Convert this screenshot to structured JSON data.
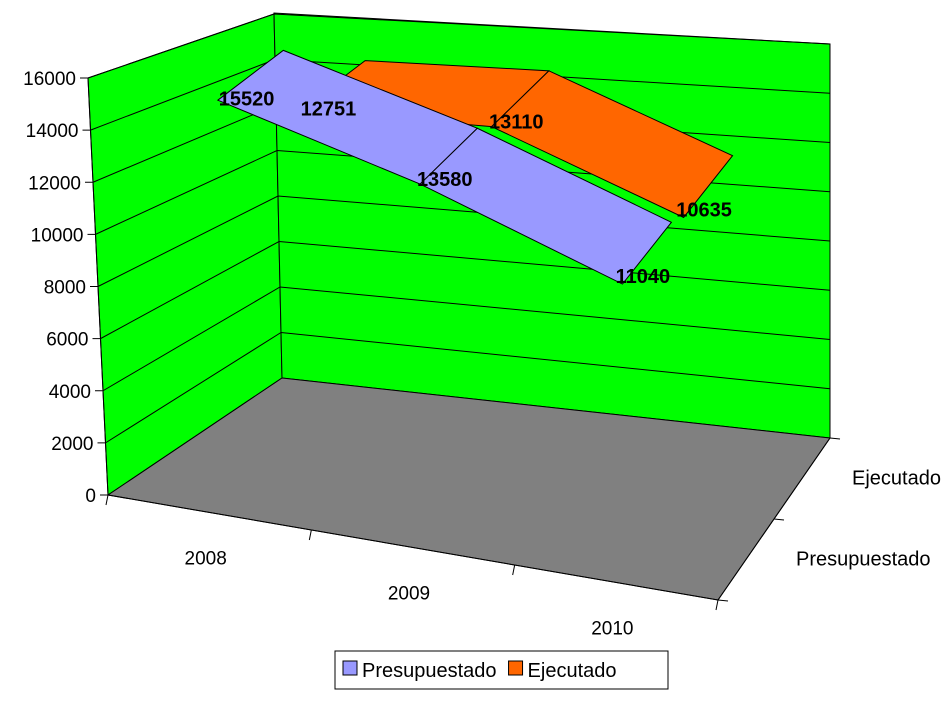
{
  "chart_data": {
    "type": "line",
    "variant": "3d-ribbon",
    "title": "",
    "xlabel": "",
    "ylabel": "",
    "categories": [
      "2008",
      "2009",
      "2010"
    ],
    "series": [
      {
        "name": "Presupuestado",
        "values": [
          15520,
          13580,
          11040
        ],
        "data_labels": [
          "15520",
          "13580",
          "11040"
        ],
        "color": "#9999ff"
      },
      {
        "name": "Ejecutado",
        "values": [
          12751,
          13110,
          10635
        ],
        "data_labels": [
          "12751",
          "13110",
          "10635"
        ],
        "color": "#ff6600"
      }
    ],
    "depth_categories": [
      "Presupuestado",
      "Ejecutado"
    ],
    "ylim": [
      0,
      16000
    ],
    "yticks": [
      "0",
      "2000",
      "4000",
      "6000",
      "8000",
      "10000",
      "12000",
      "14000",
      "16000"
    ],
    "grid": true,
    "wall_color": "#00ff00",
    "floor_color": "#808080",
    "legend": {
      "position": "bottom",
      "entries": [
        "Presupuestado",
        "Ejecutado"
      ]
    }
  }
}
